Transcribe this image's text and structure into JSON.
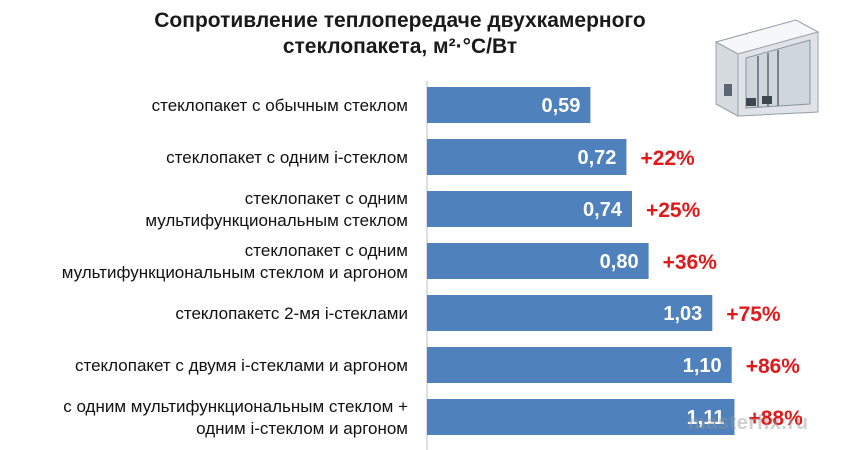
{
  "title": {
    "line1": "Сопротивление теплопередаче двухкамерного",
    "line2": "стеклопакета, м²·°С/Вт"
  },
  "watermark": "masterfix.ru",
  "icon": "window-frame-icon",
  "colors": {
    "bar": "#4f81bd",
    "increase": "#e0191b",
    "value_text": "#ffffff"
  },
  "chart_data": {
    "type": "bar",
    "orientation": "horizontal",
    "title": "Сопротивление теплопередаче двухкамерного стеклопакета, м²·°С/Вт",
    "xlabel": "",
    "ylabel": "",
    "xlim": [
      0,
      1.3
    ],
    "grid": false,
    "categories": [
      [
        "стеклопакет  с обычным стеклом"
      ],
      [
        "стеклопакет  с одним i-стеклом"
      ],
      [
        "стеклопакет  с одним",
        "мультифункциональным  стеклом"
      ],
      [
        "стеклопакет  с одним",
        "мультифункциональным  стеклом и аргоном"
      ],
      [
        "стеклопакетс  2-мя i-стеклами"
      ],
      [
        "стеклопакет  с двумя i-стеклами и аргоном"
      ],
      [
        "с одним  мультифункциональным  стеклом +",
        "одним  i-стеклом и аргоном"
      ]
    ],
    "values": [
      0.59,
      0.72,
      0.74,
      0.8,
      1.03,
      1.1,
      1.11
    ],
    "value_labels": [
      "0,59",
      "0,72",
      "0,74",
      "0,80",
      "1,03",
      "1,10",
      "1,11"
    ],
    "increase_labels": [
      "",
      "+22%",
      "+25%",
      "+36%",
      "+75%",
      "+86%",
      "+88%"
    ]
  }
}
